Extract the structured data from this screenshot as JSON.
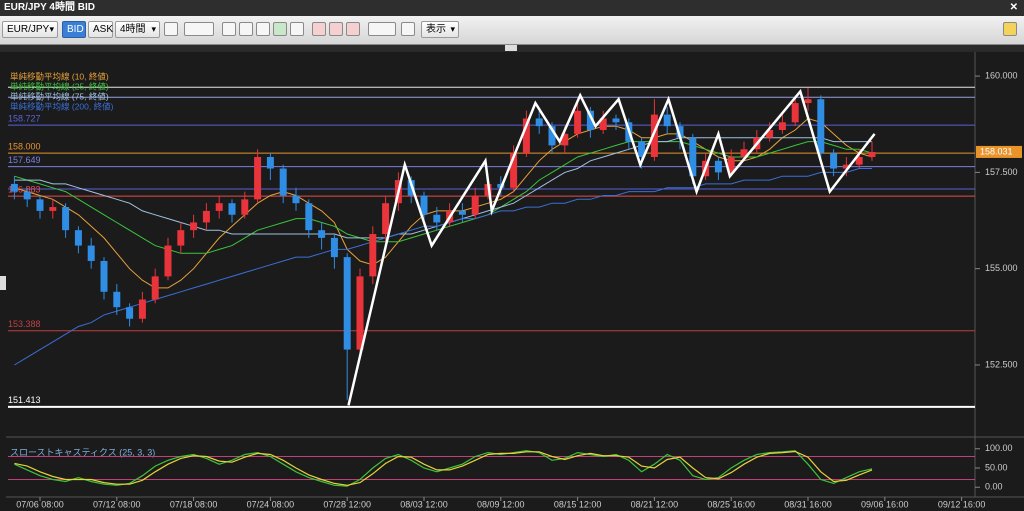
{
  "window": {
    "title": "EUR/JPY 4時間 BID"
  },
  "toolbar": {
    "symbol": "EUR/JPY",
    "bid": "BID",
    "ask": "ASK",
    "timeframe": "4時間",
    "display": "表示"
  },
  "chart_data": [
    {
      "type": "candlestick",
      "categories": [
        null,
        null,
        "07/06 08:00",
        null,
        null,
        null,
        null,
        null,
        "07/12 08:00",
        null,
        null,
        null,
        null,
        null,
        "07/18 08:00",
        null,
        null,
        null,
        null,
        null,
        "07/24 08:00",
        null,
        null,
        null,
        null,
        null,
        "07/28 12:00",
        null,
        null,
        null,
        null,
        null,
        "08/03 12:00",
        null,
        null,
        null,
        null,
        null,
        "08/09 12:00",
        null,
        null,
        null,
        null,
        null,
        "08/15 12:00",
        null,
        null,
        null,
        null,
        null,
        "08/21 12:00",
        null,
        null,
        null,
        null,
        null,
        "08/25 16:00",
        null,
        null,
        null,
        null,
        null,
        "08/31 16:00",
        null,
        null,
        null,
        null,
        null,
        "09/06 16:00",
        null,
        null,
        null,
        null,
        null,
        "09/12 16:00"
      ],
      "open": [
        157.2,
        157.0,
        156.8,
        156.5,
        156.6,
        156.0,
        155.6,
        155.2,
        154.4,
        154.0,
        153.7,
        154.2,
        154.8,
        155.6,
        156.0,
        156.2,
        156.5,
        156.7,
        156.4,
        156.8,
        157.9,
        157.6,
        156.9,
        156.7,
        156.0,
        155.8,
        155.3,
        152.9,
        154.8,
        155.9,
        156.7,
        157.3,
        156.9,
        156.4,
        156.2,
        156.5,
        156.4,
        156.9,
        157.2,
        157.1,
        158.0,
        158.9,
        158.7,
        158.2,
        158.5,
        159.1,
        158.6,
        158.9,
        158.8,
        158.3,
        157.9,
        159.0,
        158.7,
        158.4,
        157.4,
        157.8,
        157.5,
        157.9,
        158.1,
        158.4,
        158.6,
        158.8,
        159.3,
        159.4,
        158.0,
        157.6,
        157.7,
        157.9,
        null,
        null,
        null,
        null,
        null,
        null,
        null
      ],
      "high": [
        157.4,
        157.1,
        156.9,
        156.8,
        156.7,
        156.1,
        155.8,
        155.3,
        154.6,
        154.1,
        154.4,
        155.0,
        155.8,
        156.2,
        156.4,
        156.7,
        156.9,
        156.8,
        157.0,
        158.1,
        158.0,
        157.7,
        157.1,
        156.8,
        156.2,
        155.9,
        155.4,
        155.0,
        156.1,
        156.9,
        157.5,
        157.4,
        157.0,
        156.6,
        156.7,
        156.7,
        157.1,
        157.4,
        157.4,
        158.2,
        159.1,
        159.1,
        158.8,
        158.7,
        159.3,
        159.2,
        159.1,
        159.0,
        158.9,
        158.4,
        159.4,
        159.2,
        158.8,
        158.5,
        158.0,
        157.9,
        158.1,
        158.3,
        158.6,
        158.8,
        159.0,
        159.5,
        159.7,
        159.5,
        158.1,
        157.9,
        158.1,
        158.3,
        null,
        null,
        null,
        null,
        null,
        null,
        null
      ],
      "low": [
        156.8,
        156.6,
        156.3,
        156.3,
        155.8,
        155.4,
        155.0,
        154.2,
        153.8,
        153.5,
        153.6,
        154.1,
        154.7,
        155.4,
        155.8,
        156.0,
        156.3,
        156.2,
        156.3,
        156.7,
        157.3,
        156.7,
        156.5,
        155.8,
        155.5,
        155.0,
        151.6,
        152.7,
        154.6,
        155.7,
        156.5,
        156.7,
        156.2,
        156.0,
        156.1,
        156.2,
        156.3,
        156.8,
        156.9,
        157.0,
        157.9,
        158.5,
        158.0,
        158.0,
        158.4,
        158.4,
        158.5,
        158.6,
        158.1,
        157.6,
        157.8,
        158.5,
        158.1,
        157.2,
        157.3,
        157.3,
        157.4,
        157.8,
        158.0,
        158.3,
        158.5,
        158.7,
        159.1,
        157.8,
        157.4,
        157.4,
        157.6,
        157.8,
        null,
        null,
        null,
        null,
        null,
        null,
        null
      ],
      "close": [
        157.0,
        156.8,
        156.5,
        156.6,
        156.0,
        155.6,
        155.2,
        154.4,
        154.0,
        153.7,
        154.2,
        154.8,
        155.6,
        156.0,
        156.2,
        156.5,
        156.7,
        156.4,
        156.8,
        157.9,
        157.6,
        156.9,
        156.7,
        156.0,
        155.8,
        155.3,
        152.9,
        154.8,
        155.9,
        156.7,
        157.3,
        156.9,
        156.4,
        156.2,
        156.5,
        156.4,
        156.9,
        157.2,
        157.1,
        158.0,
        158.9,
        158.7,
        158.2,
        158.5,
        159.1,
        158.6,
        158.9,
        158.8,
        158.3,
        157.9,
        159.0,
        158.7,
        158.4,
        157.4,
        157.8,
        157.5,
        157.9,
        158.1,
        158.4,
        158.6,
        158.8,
        159.3,
        159.4,
        158.0,
        157.6,
        157.7,
        157.9,
        158.03,
        null,
        null,
        null,
        null,
        null,
        null,
        null
      ],
      "up_color": "#e8343a",
      "down_color": "#2f8de4",
      "ylim": [
        150.76,
        160.21
      ],
      "yticks": [
        {
          "value": 152.5,
          "label": "152.500"
        },
        {
          "value": 155,
          "label": "155.000"
        },
        {
          "value": 157.5,
          "label": "157.500"
        },
        {
          "value": 160,
          "label": "160.000"
        }
      ],
      "series": [
        {
          "name": "単純移動平均線 (10, 終値)",
          "color": "#e8a13a",
          "values": [
            157.1,
            157.0,
            156.9,
            156.8,
            156.6,
            156.4,
            156.1,
            155.8,
            155.4,
            155.0,
            154.7,
            154.5,
            154.5,
            154.7,
            155.0,
            155.4,
            155.8,
            156.1,
            156.4,
            156.7,
            156.9,
            157.0,
            156.9,
            156.7,
            156.5,
            156.2,
            155.5,
            155.2,
            155.1,
            155.3,
            155.7,
            156.1,
            156.4,
            156.5,
            156.5,
            156.5,
            156.6,
            156.7,
            156.8,
            157.0,
            157.4,
            157.8,
            158.1,
            158.3,
            158.5,
            158.6,
            158.7,
            158.7,
            158.6,
            158.4,
            158.4,
            158.5,
            158.5,
            158.3,
            158.1,
            157.9,
            157.8,
            157.8,
            157.9,
            158.1,
            158.4,
            158.6,
            158.9,
            158.8,
            158.5,
            158.2,
            158.0,
            157.9,
            null,
            null,
            null,
            null,
            null,
            null,
            null
          ]
        },
        {
          "name": "単純移動平均線 (25, 終値)",
          "color": "#3cc43c",
          "values": [
            157.4,
            157.3,
            157.2,
            157.1,
            157.0,
            156.8,
            156.6,
            156.4,
            156.2,
            156.0,
            155.8,
            155.6,
            155.5,
            155.4,
            155.4,
            155.4,
            155.5,
            155.6,
            155.8,
            156.0,
            156.1,
            156.2,
            156.3,
            156.3,
            156.2,
            156.1,
            155.9,
            155.8,
            155.7,
            155.7,
            155.7,
            155.8,
            155.9,
            156.0,
            156.1,
            156.2,
            156.3,
            156.4,
            156.6,
            156.8,
            157.0,
            157.3,
            157.5,
            157.7,
            157.9,
            158.0,
            158.1,
            158.2,
            158.3,
            158.3,
            158.3,
            158.3,
            158.3,
            158.2,
            158.1,
            158.0,
            157.9,
            157.9,
            157.9,
            158.0,
            158.1,
            158.2,
            158.3,
            158.3,
            158.2,
            158.1,
            158.1,
            158.0,
            null,
            null,
            null,
            null,
            null,
            null,
            null
          ]
        },
        {
          "name": "単純移動平均線 (75, 終値)",
          "color": "#9fc3e0",
          "values": [
            157.3,
            157.3,
            157.3,
            157.2,
            157.2,
            157.1,
            157.0,
            156.9,
            156.8,
            156.7,
            156.5,
            156.4,
            156.3,
            156.2,
            156.1,
            156.0,
            156.0,
            155.9,
            155.9,
            155.9,
            155.9,
            155.9,
            155.9,
            155.9,
            155.9,
            155.9,
            155.8,
            155.8,
            155.8,
            155.8,
            155.9,
            155.9,
            156.0,
            156.1,
            156.2,
            156.3,
            156.4,
            156.5,
            156.6,
            156.7,
            156.9,
            157.1,
            157.3,
            157.5,
            157.6,
            157.8,
            157.9,
            158.0,
            158.1,
            158.2,
            158.3,
            158.3,
            158.4,
            158.4,
            158.4,
            158.4,
            158.4,
            158.4,
            158.4,
            158.4,
            158.4,
            158.4,
            158.4,
            158.4,
            158.3,
            158.3,
            158.3,
            158.3,
            null,
            null,
            null,
            null,
            null,
            null,
            null
          ]
        },
        {
          "name": "単純移動平均線 (200, 終値)",
          "color": "#3a6fd8",
          "values": [
            152.5,
            152.7,
            152.9,
            153.1,
            153.3,
            153.5,
            153.6,
            153.8,
            153.9,
            154.0,
            154.1,
            154.2,
            154.3,
            154.4,
            154.5,
            154.6,
            154.7,
            154.8,
            154.9,
            155.0,
            155.1,
            155.2,
            155.3,
            155.3,
            155.4,
            155.5,
            155.5,
            155.6,
            155.7,
            155.8,
            155.9,
            156.0,
            156.1,
            156.1,
            156.2,
            156.3,
            156.3,
            156.4,
            156.5,
            156.5,
            156.6,
            156.6,
            156.7,
            156.7,
            156.8,
            156.8,
            156.9,
            156.9,
            157.0,
            157.0,
            157.0,
            157.1,
            157.1,
            157.1,
            157.2,
            157.2,
            157.2,
            157.3,
            157.3,
            157.3,
            157.4,
            157.4,
            157.4,
            157.5,
            157.5,
            157.5,
            157.6,
            157.6,
            null,
            null,
            null,
            null,
            null,
            null,
            null
          ]
        }
      ],
      "levels": [
        {
          "value": 159.71,
          "color": "#e6e6e6"
        },
        {
          "value": 159.45,
          "color": "#9aa0e0"
        },
        {
          "value": 158.727,
          "color": "#5a62d8",
          "label": "158.727"
        },
        {
          "value": 158,
          "color": "#e8942a",
          "label": "158.000"
        },
        {
          "value": 157.649,
          "color": "#7a80e0",
          "label": "157.649"
        },
        {
          "value": 157.07,
          "color": "#5a62d8"
        },
        {
          "value": 156.883,
          "color": "#e84a4a",
          "label": "156.883"
        },
        {
          "value": 153.388,
          "color": "#c04040",
          "label": "153.388"
        },
        {
          "value": 151.413,
          "color": "#ffffff",
          "label": "151.413"
        }
      ],
      "current_price": 158.031,
      "annotation": {
        "color": "#ffffff",
        "x": [
          26.1,
          30.5,
          32.6,
          36.8,
          37.3,
          40.7,
          42.6,
          44.2,
          45.4,
          47.2,
          48.9,
          51.1,
          53.3,
          55.0,
          55.9,
          61.4,
          63.7,
          67.2
        ],
        "y": [
          151.45,
          157.7,
          155.6,
          157.8,
          156.5,
          159.3,
          158.3,
          159.5,
          158.7,
          159.4,
          157.7,
          159.4,
          157.0,
          158.5,
          157.4,
          159.6,
          157.0,
          158.5
        ]
      }
    },
    {
      "type": "line",
      "title": "スローストキャスティクス (25, 3, 3)",
      "ylim": [
        -15,
        115
      ],
      "yticks": [
        {
          "value": 100,
          "label": "100.00"
        },
        {
          "value": 50,
          "label": "50.00"
        },
        {
          "value": 0,
          "label": "0.00"
        }
      ],
      "levels": [
        80,
        20
      ],
      "series": [
        {
          "color": "#3cc43c",
          "values": [
            60,
            45,
            30,
            20,
            15,
            25,
            15,
            8,
            5,
            10,
            30,
            55,
            70,
            80,
            85,
            75,
            60,
            70,
            85,
            90,
            80,
            60,
            40,
            25,
            15,
            5,
            3,
            20,
            50,
            75,
            85,
            70,
            50,
            40,
            50,
            60,
            80,
            90,
            85,
            90,
            95,
            90,
            70,
            75,
            90,
            85,
            80,
            85,
            70,
            40,
            60,
            85,
            70,
            30,
            20,
            25,
            50,
            70,
            85,
            90,
            92,
            95,
            60,
            20,
            10,
            25,
            40,
            48,
            null,
            null,
            null,
            null,
            null,
            null,
            null
          ]
        },
        {
          "color": "#e8d23a",
          "values": [
            62,
            55,
            40,
            28,
            20,
            20,
            20,
            12,
            8,
            8,
            18,
            40,
            60,
            75,
            82,
            80,
            68,
            65,
            78,
            88,
            85,
            70,
            50,
            32,
            20,
            10,
            5,
            12,
            35,
            62,
            80,
            78,
            60,
            45,
            45,
            55,
            70,
            85,
            88,
            88,
            92,
            92,
            80,
            72,
            82,
            88,
            82,
            82,
            78,
            55,
            50,
            72,
            78,
            50,
            25,
            22,
            38,
            60,
            78,
            88,
            90,
            93,
            78,
            40,
            15,
            18,
            32,
            45,
            null,
            null,
            null,
            null,
            null,
            null,
            null
          ]
        }
      ]
    }
  ]
}
